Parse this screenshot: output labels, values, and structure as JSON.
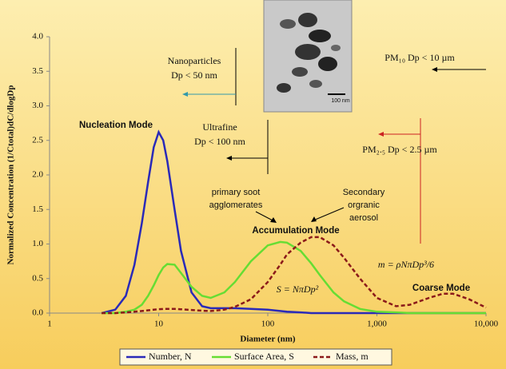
{
  "chart_data": {
    "type": "line",
    "xlabel": "Diameter (nm)",
    "ylabel": "Normalized Concentration  (1/Ctotal)dC/dlogDp",
    "xscale": "log",
    "xlim": [
      1,
      10000
    ],
    "xticks": [
      1,
      10,
      100,
      {
        "value": 1000,
        "label": "1,000"
      },
      {
        "value": 10000,
        "label": "10,000"
      }
    ],
    "ylim": [
      0,
      4
    ],
    "yticks": [
      {
        "value": 0,
        "label": "0.0"
      },
      0.5,
      {
        "value": 1,
        "label": "1.0"
      },
      1.5,
      {
        "value": 2,
        "label": "2.0"
      },
      2.5,
      {
        "value": 3,
        "label": "3.0"
      },
      3.5,
      {
        "value": 4,
        "label": "4.0"
      }
    ],
    "legend": "bottom",
    "x": [
      3,
      4,
      5,
      6,
      7,
      8,
      9,
      10,
      11,
      12,
      14,
      16,
      20,
      25,
      30,
      40,
      50,
      70,
      100,
      130,
      150,
      200,
      250,
      300,
      400,
      500,
      700,
      1000,
      1500,
      2000,
      3000,
      4000,
      5000,
      7000,
      10000
    ],
    "series": [
      {
        "name": "Number, N",
        "color": "#2a2ab8",
        "linestyle": "solid",
        "values": [
          0,
          0.05,
          0.25,
          0.7,
          1.3,
          1.9,
          2.4,
          2.62,
          2.5,
          2.2,
          1.5,
          0.9,
          0.3,
          0.1,
          0.07,
          0.07,
          0.07,
          0.06,
          0.05,
          0.03,
          0.02,
          0.01,
          0,
          0,
          0,
          0,
          0,
          0,
          0,
          0,
          0,
          0,
          0,
          0,
          0
        ]
      },
      {
        "name": "Surface Area, S",
        "color": "#66dd33",
        "linestyle": "solid",
        "values": [
          0,
          0,
          0.02,
          0.05,
          0.12,
          0.25,
          0.4,
          0.55,
          0.66,
          0.71,
          0.7,
          0.58,
          0.38,
          0.25,
          0.22,
          0.3,
          0.45,
          0.75,
          0.98,
          1.03,
          1.02,
          0.9,
          0.72,
          0.55,
          0.3,
          0.17,
          0.06,
          0.02,
          0.01,
          0,
          0,
          0,
          0,
          0,
          0
        ]
      },
      {
        "name": "Mass, m",
        "color": "#8b1a1a",
        "linestyle": "dashed",
        "values": [
          0,
          0,
          0.01,
          0.02,
          0.03,
          0.04,
          0.05,
          0.055,
          0.06,
          0.06,
          0.06,
          0.055,
          0.045,
          0.035,
          0.03,
          0.05,
          0.09,
          0.2,
          0.45,
          0.7,
          0.85,
          1.02,
          1.1,
          1.1,
          0.98,
          0.8,
          0.5,
          0.22,
          0.1,
          0.12,
          0.22,
          0.28,
          0.28,
          0.2,
          0.08
        ]
      }
    ],
    "annotations": [
      "Nanoparticles",
      "Dp < 50 nm",
      "Nucleation Mode",
      "Ultrafine",
      "Dp < 100 nm",
      "PM₁₀ Dp < 10 µm",
      "PM₂.₅ Dp < 2.5 µm",
      "primary soot",
      "agglomerates",
      "Secondary",
      "orgranic",
      "aerosol",
      "Accumulation Mode",
      "m = ρNπDp³/6",
      "S = NπDp²",
      "Coarse Mode"
    ],
    "inset_label": "100 nm"
  }
}
